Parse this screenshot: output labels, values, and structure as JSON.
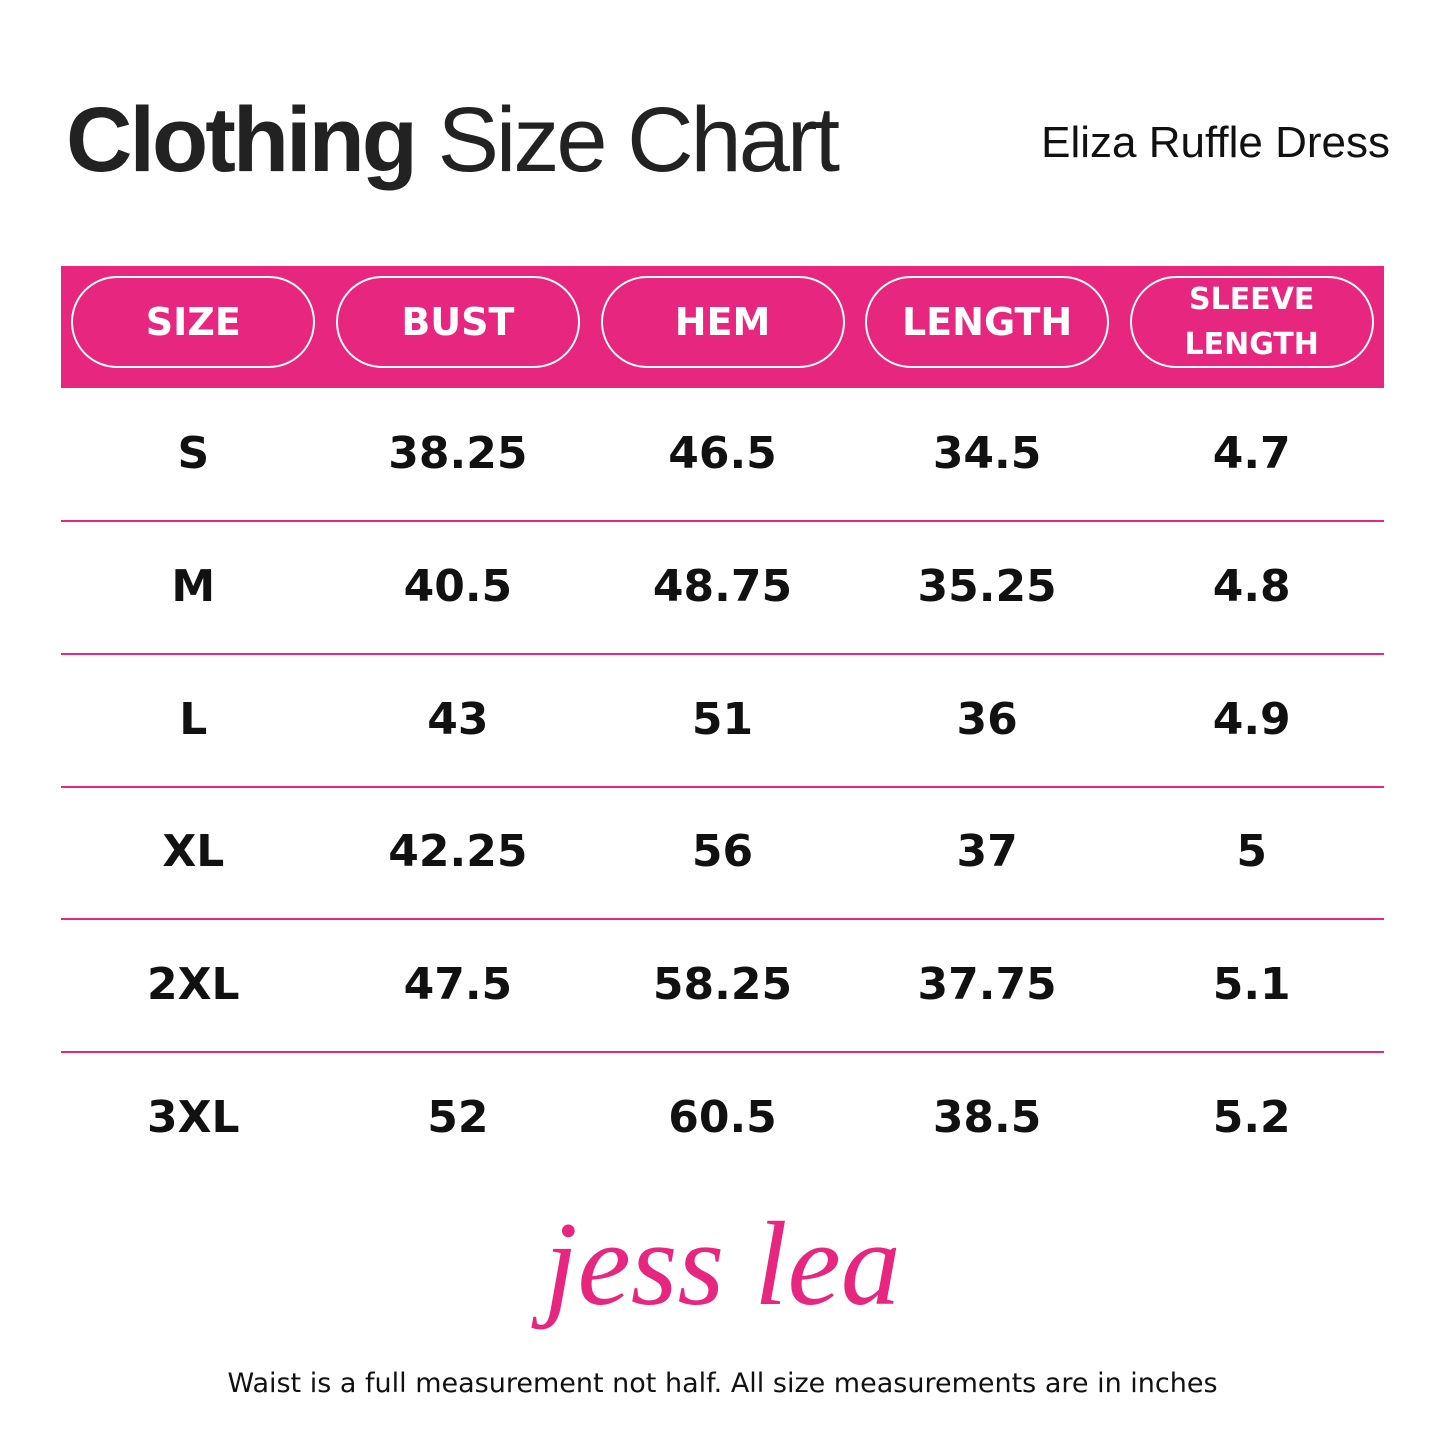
{
  "header": {
    "title_bold": "Clothing",
    "title_rest": "Size Chart",
    "product": "Eliza Ruffle Dress"
  },
  "table": {
    "columns": [
      "SIZE",
      "BUST",
      "HEM",
      "LENGTH",
      "SLEEVE LENGTH"
    ],
    "rows": [
      [
        "S",
        "38.25",
        "46.5",
        "34.5",
        "4.7"
      ],
      [
        "M",
        "40.5",
        "48.75",
        "35.25",
        "4.8"
      ],
      [
        "L",
        "43",
        "51",
        "36",
        "4.9"
      ],
      [
        "XL",
        "42.25",
        "56",
        "37",
        "5"
      ],
      [
        "2XL",
        "47.5",
        "58.25",
        "37.75",
        "5.1"
      ],
      [
        "3XL",
        "52",
        "60.5",
        "38.5",
        "5.2"
      ]
    ]
  },
  "logo": "jess lea",
  "footer": {
    "note": "Waist is a full measurement not half. All size measurements are in inches"
  }
}
